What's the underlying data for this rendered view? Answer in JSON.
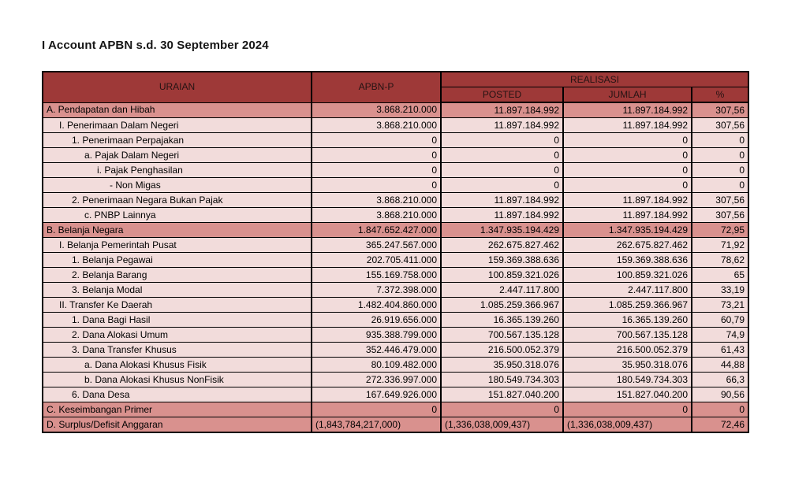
{
  "title": "I Account APBN s.d. 30 September 2024",
  "colors": {
    "header_bg": "#9e3938",
    "header_text": "#241313",
    "section_row_bg": "#d9918e",
    "light_row_bg": "#f2dcdb",
    "border": "#000000",
    "body_text": "#000000",
    "page_bg": "#ffffff"
  },
  "table": {
    "headers": {
      "uraian": "URAIAN",
      "apbnp": "APBN-P",
      "realisasi": "REALISASI",
      "posted": "POSTED",
      "jumlah": "JUMLAH",
      "percent": "%"
    },
    "rows": [
      {
        "label": "A. Pendapatan dan Hibah",
        "indent": 0,
        "section": true,
        "apbnp": "3.868.210.000",
        "posted": "11.897.184.992",
        "jumlah": "11.897.184.992",
        "pct": "307,56"
      },
      {
        "label": "I. Penerimaan Dalam Negeri",
        "indent": 1,
        "section": false,
        "apbnp": "3.868.210.000",
        "posted": "11.897.184.992",
        "jumlah": "11.897.184.992",
        "pct": "307,56"
      },
      {
        "label": "1. Penerimaan Perpajakan",
        "indent": 2,
        "section": false,
        "apbnp": "0",
        "posted": "0",
        "jumlah": "0",
        "pct": "0"
      },
      {
        "label": "a. Pajak Dalam Negeri",
        "indent": 3,
        "section": false,
        "apbnp": "0",
        "posted": "0",
        "jumlah": "0",
        "pct": "0"
      },
      {
        "label": "i. Pajak Penghasilan",
        "indent": 4,
        "section": false,
        "apbnp": "0",
        "posted": "0",
        "jumlah": "0",
        "pct": "0"
      },
      {
        "label": "- Non Migas",
        "indent": 5,
        "section": false,
        "apbnp": "0",
        "posted": "0",
        "jumlah": "0",
        "pct": "0"
      },
      {
        "label": "2. Penerimaan Negara Bukan Pajak",
        "indent": 2,
        "section": false,
        "apbnp": "3.868.210.000",
        "posted": "11.897.184.992",
        "jumlah": "11.897.184.992",
        "pct": "307,56"
      },
      {
        "label": "c. PNBP Lainnya",
        "indent": 3,
        "section": false,
        "apbnp": "3.868.210.000",
        "posted": "11.897.184.992",
        "jumlah": "11.897.184.992",
        "pct": "307,56"
      },
      {
        "label": "B. Belanja Negara",
        "indent": 0,
        "section": true,
        "apbnp": "1.847.652.427.000",
        "posted": "1.347.935.194.429",
        "jumlah": "1.347.935.194.429",
        "pct": "72,95"
      },
      {
        "label": "I. Belanja Pemerintah Pusat",
        "indent": 1,
        "section": false,
        "apbnp": "365.247.567.000",
        "posted": "262.675.827.462",
        "jumlah": "262.675.827.462",
        "pct": "71,92"
      },
      {
        "label": "1. Belanja Pegawai",
        "indent": 2,
        "section": false,
        "apbnp": "202.705.411.000",
        "posted": "159.369.388.636",
        "jumlah": "159.369.388.636",
        "pct": "78,62"
      },
      {
        "label": "2. Belanja Barang",
        "indent": 2,
        "section": false,
        "apbnp": "155.169.758.000",
        "posted": "100.859.321.026",
        "jumlah": "100.859.321.026",
        "pct": "65"
      },
      {
        "label": "3. Belanja Modal",
        "indent": 2,
        "section": false,
        "apbnp": "7.372.398.000",
        "posted": "2.447.117.800",
        "jumlah": "2.447.117.800",
        "pct": "33,19"
      },
      {
        "label": "II. Transfer Ke Daerah",
        "indent": 1,
        "section": false,
        "apbnp": "1.482.404.860.000",
        "posted": "1.085.259.366.967",
        "jumlah": "1.085.259.366.967",
        "pct": "73,21"
      },
      {
        "label": "1. Dana Bagi Hasil",
        "indent": 2,
        "section": false,
        "apbnp": "26.919.656.000",
        "posted": "16.365.139.260",
        "jumlah": "16.365.139.260",
        "pct": "60,79"
      },
      {
        "label": "2. Dana Alokasi Umum",
        "indent": 2,
        "section": false,
        "apbnp": "935.388.799.000",
        "posted": "700.567.135.128",
        "jumlah": "700.567.135.128",
        "pct": "74,9"
      },
      {
        "label": "3. Dana Transfer Khusus",
        "indent": 2,
        "section": false,
        "apbnp": "352.446.479.000",
        "posted": "216.500.052.379",
        "jumlah": "216.500.052.379",
        "pct": "61,43"
      },
      {
        "label": "a. Dana Alokasi Khusus Fisik",
        "indent": 3,
        "section": false,
        "apbnp": "80.109.482.000",
        "posted": "35.950.318.076",
        "jumlah": "35.950.318.076",
        "pct": "44,88"
      },
      {
        "label": "b. Dana Alokasi Khusus NonFisik",
        "indent": 3,
        "section": false,
        "apbnp": "272.336.997.000",
        "posted": "180.549.734.303",
        "jumlah": "180.549.734.303",
        "pct": "66,3"
      },
      {
        "label": "6. Dana Desa",
        "indent": 2,
        "section": false,
        "apbnp": "167.649.926.000",
        "posted": "151.827.040.200",
        "jumlah": "151.827.040.200",
        "pct": "90,56"
      },
      {
        "label": "C. Keseimbangan Primer",
        "indent": 0,
        "section": true,
        "apbnp": "0",
        "posted": "0",
        "jumlah": "0",
        "pct": "0"
      },
      {
        "label": "D. Surplus/Defisit Anggaran",
        "indent": 0,
        "section": true,
        "numAlign": "left",
        "apbnp": "(1,843,784,217,000)",
        "posted": "(1,336,038,009,437)",
        "jumlah": "(1,336,038,009,437)",
        "pct": "72,46"
      }
    ]
  }
}
